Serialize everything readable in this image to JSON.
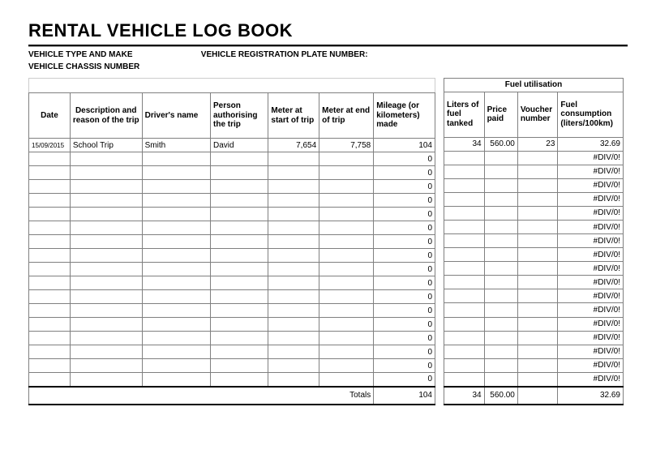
{
  "title": "RENTAL VEHICLE LOG BOOK",
  "meta": {
    "vehicle_type_label": "VEHICLE TYPE AND MAKE",
    "registration_label": "VEHICLE REGISTRATION PLATE NUMBER:",
    "chassis_label": "VEHICLE CHASSIS NUMBER"
  },
  "main_headers": {
    "date": "Date",
    "description": "Description and reason of the trip",
    "driver": "Driver's name",
    "person": "Person authorising the trip",
    "mstart": "Meter at start of trip",
    "mend": "Meter at end of trip",
    "mileage": "Mileage (or kilometers) made"
  },
  "fuel_section_title": "Fuel utilisation",
  "fuel_headers": {
    "liters": "Liters of fuel tanked",
    "price": "Price paid",
    "voucher": "Voucher number",
    "consumption": "Fuel consumption (liters/100km)"
  },
  "rows": [
    {
      "date": "15/09/2015",
      "desc": "School Trip",
      "driver": "Smith",
      "person": "David",
      "mstart": "7,654",
      "mend": "7,758",
      "mileage": "104",
      "liters": "34",
      "price": "560.00",
      "voucher": "23",
      "consumption": "32.69"
    },
    {
      "date": "",
      "desc": "",
      "driver": "",
      "person": "",
      "mstart": "",
      "mend": "",
      "mileage": "0",
      "liters": "",
      "price": "",
      "voucher": "",
      "consumption": "#DIV/0!"
    },
    {
      "date": "",
      "desc": "",
      "driver": "",
      "person": "",
      "mstart": "",
      "mend": "",
      "mileage": "0",
      "liters": "",
      "price": "",
      "voucher": "",
      "consumption": "#DIV/0!"
    },
    {
      "date": "",
      "desc": "",
      "driver": "",
      "person": "",
      "mstart": "",
      "mend": "",
      "mileage": "0",
      "liters": "",
      "price": "",
      "voucher": "",
      "consumption": "#DIV/0!"
    },
    {
      "date": "",
      "desc": "",
      "driver": "",
      "person": "",
      "mstart": "",
      "mend": "",
      "mileage": "0",
      "liters": "",
      "price": "",
      "voucher": "",
      "consumption": "#DIV/0!"
    },
    {
      "date": "",
      "desc": "",
      "driver": "",
      "person": "",
      "mstart": "",
      "mend": "",
      "mileage": "0",
      "liters": "",
      "price": "",
      "voucher": "",
      "consumption": "#DIV/0!"
    },
    {
      "date": "",
      "desc": "",
      "driver": "",
      "person": "",
      "mstart": "",
      "mend": "",
      "mileage": "0",
      "liters": "",
      "price": "",
      "voucher": "",
      "consumption": "#DIV/0!"
    },
    {
      "date": "",
      "desc": "",
      "driver": "",
      "person": "",
      "mstart": "",
      "mend": "",
      "mileage": "0",
      "liters": "",
      "price": "",
      "voucher": "",
      "consumption": "#DIV/0!"
    },
    {
      "date": "",
      "desc": "",
      "driver": "",
      "person": "",
      "mstart": "",
      "mend": "",
      "mileage": "0",
      "liters": "",
      "price": "",
      "voucher": "",
      "consumption": "#DIV/0!"
    },
    {
      "date": "",
      "desc": "",
      "driver": "",
      "person": "",
      "mstart": "",
      "mend": "",
      "mileage": "0",
      "liters": "",
      "price": "",
      "voucher": "",
      "consumption": "#DIV/0!"
    },
    {
      "date": "",
      "desc": "",
      "driver": "",
      "person": "",
      "mstart": "",
      "mend": "",
      "mileage": "0",
      "liters": "",
      "price": "",
      "voucher": "",
      "consumption": "#DIV/0!"
    },
    {
      "date": "",
      "desc": "",
      "driver": "",
      "person": "",
      "mstart": "",
      "mend": "",
      "mileage": "0",
      "liters": "",
      "price": "",
      "voucher": "",
      "consumption": "#DIV/0!"
    },
    {
      "date": "",
      "desc": "",
      "driver": "",
      "person": "",
      "mstart": "",
      "mend": "",
      "mileage": "0",
      "liters": "",
      "price": "",
      "voucher": "",
      "consumption": "#DIV/0!"
    },
    {
      "date": "",
      "desc": "",
      "driver": "",
      "person": "",
      "mstart": "",
      "mend": "",
      "mileage": "0",
      "liters": "",
      "price": "",
      "voucher": "",
      "consumption": "#DIV/0!"
    },
    {
      "date": "",
      "desc": "",
      "driver": "",
      "person": "",
      "mstart": "",
      "mend": "",
      "mileage": "0",
      "liters": "",
      "price": "",
      "voucher": "",
      "consumption": "#DIV/0!"
    },
    {
      "date": "",
      "desc": "",
      "driver": "",
      "person": "",
      "mstart": "",
      "mend": "",
      "mileage": "0",
      "liters": "",
      "price": "",
      "voucher": "",
      "consumption": "#DIV/0!"
    },
    {
      "date": "",
      "desc": "",
      "driver": "",
      "person": "",
      "mstart": "",
      "mend": "",
      "mileage": "0",
      "liters": "",
      "price": "",
      "voucher": "",
      "consumption": "#DIV/0!"
    },
    {
      "date": "",
      "desc": "",
      "driver": "",
      "person": "",
      "mstart": "",
      "mend": "",
      "mileage": "0",
      "liters": "",
      "price": "",
      "voucher": "",
      "consumption": "#DIV/0!"
    }
  ],
  "totals": {
    "label": "Totals",
    "mileage": "104",
    "liters": "34",
    "price": "560.00",
    "voucher": "",
    "consumption": "32.69"
  }
}
